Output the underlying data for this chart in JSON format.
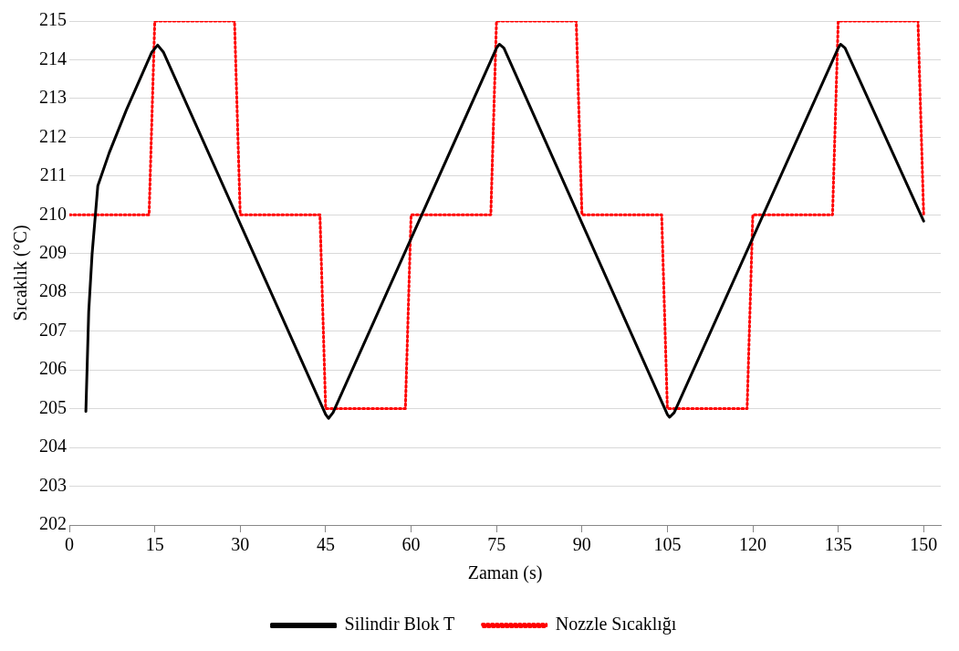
{
  "chart_data": {
    "type": "line",
    "xlabel": "Zaman (s)",
    "ylabel": "Sıcaklık (°C)",
    "xlim": [
      0,
      153
    ],
    "xticks": [
      0,
      15,
      30,
      45,
      60,
      75,
      90,
      105,
      120,
      135,
      150
    ],
    "ylim": [
      202,
      215
    ],
    "yticks": [
      202,
      203,
      204,
      205,
      206,
      207,
      208,
      209,
      210,
      211,
      212,
      213,
      214,
      215
    ],
    "grid": "y",
    "legend": "bottom",
    "marker": "none",
    "series": [
      {
        "name": "Silindir Blok T",
        "color": "#000000",
        "line_style": "solid",
        "x": [
          2.9,
          3.4,
          4,
          5,
          7,
          10,
          13,
          14.5,
          15.5,
          16.5,
          45,
          45.5,
          46.3,
          75,
          75.5,
          76.3,
          105,
          105.4,
          106.2,
          135,
          135.4,
          136.2,
          150
        ],
        "values": [
          204.93,
          207.5,
          209.0,
          210.75,
          211.6,
          212.7,
          213.7,
          214.2,
          214.38,
          214.2,
          204.85,
          204.75,
          204.9,
          214.3,
          214.4,
          214.3,
          204.85,
          204.78,
          204.9,
          214.3,
          214.4,
          214.3,
          209.84
        ]
      },
      {
        "name": "Nozzle Sıcaklığı",
        "color": "#ff0000",
        "line_style": "dotted",
        "x": [
          0,
          14,
          15,
          29,
          30,
          44,
          45,
          59,
          60,
          74,
          75,
          89,
          90,
          104,
          105,
          119,
          120,
          134,
          135,
          149,
          150
        ],
        "values": [
          210,
          210,
          215,
          215,
          210,
          210,
          205,
          205,
          210,
          210,
          215,
          215,
          210,
          210,
          205,
          205,
          210,
          210,
          215,
          215,
          210
        ]
      }
    ]
  }
}
